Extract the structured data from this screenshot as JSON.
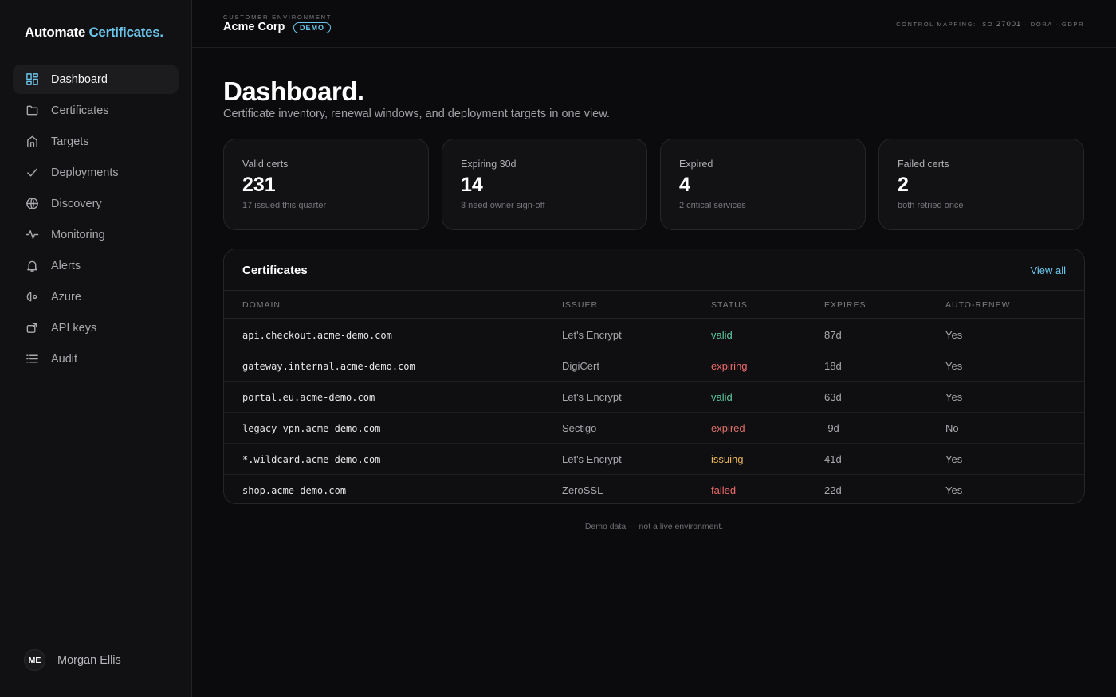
{
  "brand": {
    "prefix": "Automate",
    "accent": "Certificates."
  },
  "colors": {
    "accent": "#6cc6ec",
    "valid": "#5dc9a0",
    "expiring": "#ef6b6b",
    "expired": "#e0706a",
    "issuing": "#e8b45a",
    "failed": "#ef6b6b"
  },
  "sidebar": {
    "items": [
      {
        "label": "Dashboard",
        "icon": "dashboard-icon",
        "active": true
      },
      {
        "label": "Certificates",
        "icon": "folder-icon"
      },
      {
        "label": "Targets",
        "icon": "home-icon"
      },
      {
        "label": "Deployments",
        "icon": "check-icon"
      },
      {
        "label": "Discovery",
        "icon": "globe-icon"
      },
      {
        "label": "Monitoring",
        "icon": "pulse-icon"
      },
      {
        "label": "Alerts",
        "icon": "bell-icon"
      },
      {
        "label": "Azure",
        "icon": "azure-icon"
      },
      {
        "label": "API keys",
        "icon": "key-icon"
      },
      {
        "label": "Audit",
        "icon": "list-icon"
      }
    ]
  },
  "user": {
    "initials": "ME",
    "name": "Morgan Ellis"
  },
  "topbar": {
    "env_label": "CUSTOMER ENVIRONMENT",
    "env_name": "Acme Corp",
    "badge": "DEMO",
    "control_prefix": "CONTROL MAPPING: ISO",
    "control_iso": "27001",
    "control_suffix": "· DORA · GDPR"
  },
  "page": {
    "title": "Dashboard.",
    "subtitle": "Certificate inventory, renewal windows, and deployment targets in one view."
  },
  "stats": [
    {
      "label": "Valid certs",
      "value": "231",
      "note": "17 issued this quarter"
    },
    {
      "label": "Expiring 30d",
      "value": "14",
      "note": "3 need owner sign-off"
    },
    {
      "label": "Expired",
      "value": "4",
      "note": "2 critical services"
    },
    {
      "label": "Failed certs",
      "value": "2",
      "note": "both retried once"
    }
  ],
  "certificates": {
    "title": "Certificates",
    "view_all": "View all",
    "columns": [
      "DOMAIN",
      "ISSUER",
      "STATUS",
      "EXPIRES",
      "AUTO-RENEW"
    ],
    "rows": [
      {
        "domain": "api.checkout.acme-demo.com",
        "issuer": "Let's Encrypt",
        "status": "valid",
        "expires": "87d",
        "auto_renew": "Yes"
      },
      {
        "domain": "gateway.internal.acme-demo.com",
        "issuer": "DigiCert",
        "status": "expiring",
        "expires": "18d",
        "auto_renew": "Yes"
      },
      {
        "domain": "portal.eu.acme-demo.com",
        "issuer": "Let's Encrypt",
        "status": "valid",
        "expires": "63d",
        "auto_renew": "Yes"
      },
      {
        "domain": "legacy-vpn.acme-demo.com",
        "issuer": "Sectigo",
        "status": "expired",
        "expires": "-9d",
        "auto_renew": "No"
      },
      {
        "domain": "*.wildcard.acme-demo.com",
        "issuer": "Let's Encrypt",
        "status": "issuing",
        "expires": "41d",
        "auto_renew": "Yes"
      },
      {
        "domain": "shop.acme-demo.com",
        "issuer": "ZeroSSL",
        "status": "failed",
        "expires": "22d",
        "auto_renew": "Yes"
      }
    ]
  },
  "footer_note": "Demo data — not a live environment."
}
